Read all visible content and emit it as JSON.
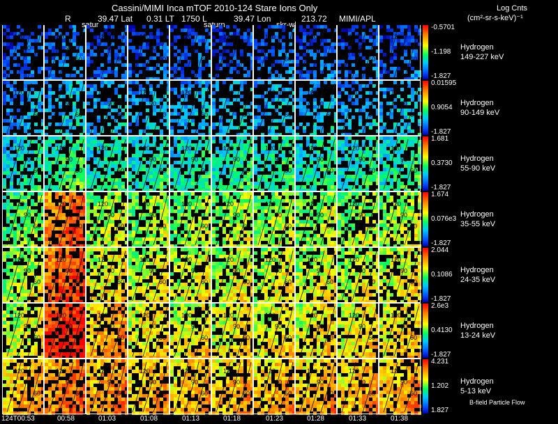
{
  "header": {
    "title": "Cassini/MIMI Inca mTOF  2010-124   Stare    Ions Only",
    "r_label": "R",
    "lat": "39.47 Lat",
    "lt": "0.31 LT",
    "lval": "1750 L",
    "lon": "39.47 Lon",
    "lon_val": "213.72",
    "org": "MIMI/APL",
    "saturn_left": "satur",
    "saturn_mid": "saturn",
    "skr": "skr-wl",
    "units_title": "Log Cnts",
    "units": "(cm²-sr-s-keV)⁻¹"
  },
  "chart_data": {
    "type": "heatmap",
    "title": "Cassini/MIMI Inca mTOF  2010-124   Stare    Ions Only",
    "time_labels": [
      "124T00:53",
      "00:58",
      "01:03",
      "01:08",
      "01:13",
      "01:18",
      "01:23",
      "01:28",
      "01:33",
      "01:38"
    ],
    "rows": [
      {
        "species": "Hydrogen",
        "energy": "149-227 keV",
        "cmax": "-0.5701",
        "cmid": "-1.198",
        "cmin": "-1.827",
        "level": [
          0.12,
          0.18,
          0.12,
          0.12,
          0.12,
          0.12,
          0.14,
          0.14,
          0.12,
          0.12
        ]
      },
      {
        "species": "Hydrogen",
        "energy": "90-149 keV",
        "cmax": "0.01595",
        "cmid": "0.9054",
        "cmin": "-1.827",
        "level": [
          0.22,
          0.28,
          0.25,
          0.24,
          0.24,
          0.25,
          0.26,
          0.26,
          0.24,
          0.26
        ]
      },
      {
        "species": "Hydrogen",
        "energy": "55-90 keV",
        "cmax": "1.681",
        "cmid": "0.3730",
        "cmin": "-1.827",
        "level": [
          0.36,
          0.42,
          0.38,
          0.37,
          0.37,
          0.38,
          0.39,
          0.38,
          0.37,
          0.38
        ]
      },
      {
        "species": "Hydrogen",
        "energy": "35-55 keV",
        "cmax": "1.674",
        "cmid": "0.076e3",
        "cmin": "-1.827",
        "level": [
          0.48,
          0.82,
          0.55,
          0.52,
          0.52,
          0.53,
          0.54,
          0.53,
          0.52,
          0.54
        ]
      },
      {
        "species": "Hydrogen",
        "energy": "24-35 keV",
        "cmax": "2.044",
        "cmid": "0.1086",
        "cmin": "-1.827",
        "level": [
          0.55,
          0.85,
          0.62,
          0.58,
          0.58,
          0.58,
          0.58,
          0.58,
          0.58,
          0.6
        ]
      },
      {
        "species": "Hydrogen",
        "energy": "13-24 keV",
        "cmax": "2.6e3",
        "cmid": "0.4130",
        "cmin": "-1.827",
        "level": [
          0.58,
          0.92,
          0.72,
          0.64,
          0.62,
          0.62,
          0.62,
          0.62,
          0.62,
          0.64
        ]
      },
      {
        "species": "Hydrogen",
        "energy": "5-13 keV",
        "cmax": "4.231",
        "cmid": "1.202",
        "cmin": "1.827",
        "level": [
          0.7,
          0.78,
          0.74,
          0.7,
          0.7,
          0.7,
          0.7,
          0.7,
          0.7,
          0.72
        ]
      }
    ],
    "contour_labels": [
      "120",
      "90",
      "60",
      "30"
    ],
    "footer_note": "B-field Particle Flow",
    "colorscale": [
      "#0000aa",
      "#0050ff",
      "#00c8ff",
      "#00ff60",
      "#ffff00",
      "#ff8000",
      "#ff0000"
    ]
  }
}
